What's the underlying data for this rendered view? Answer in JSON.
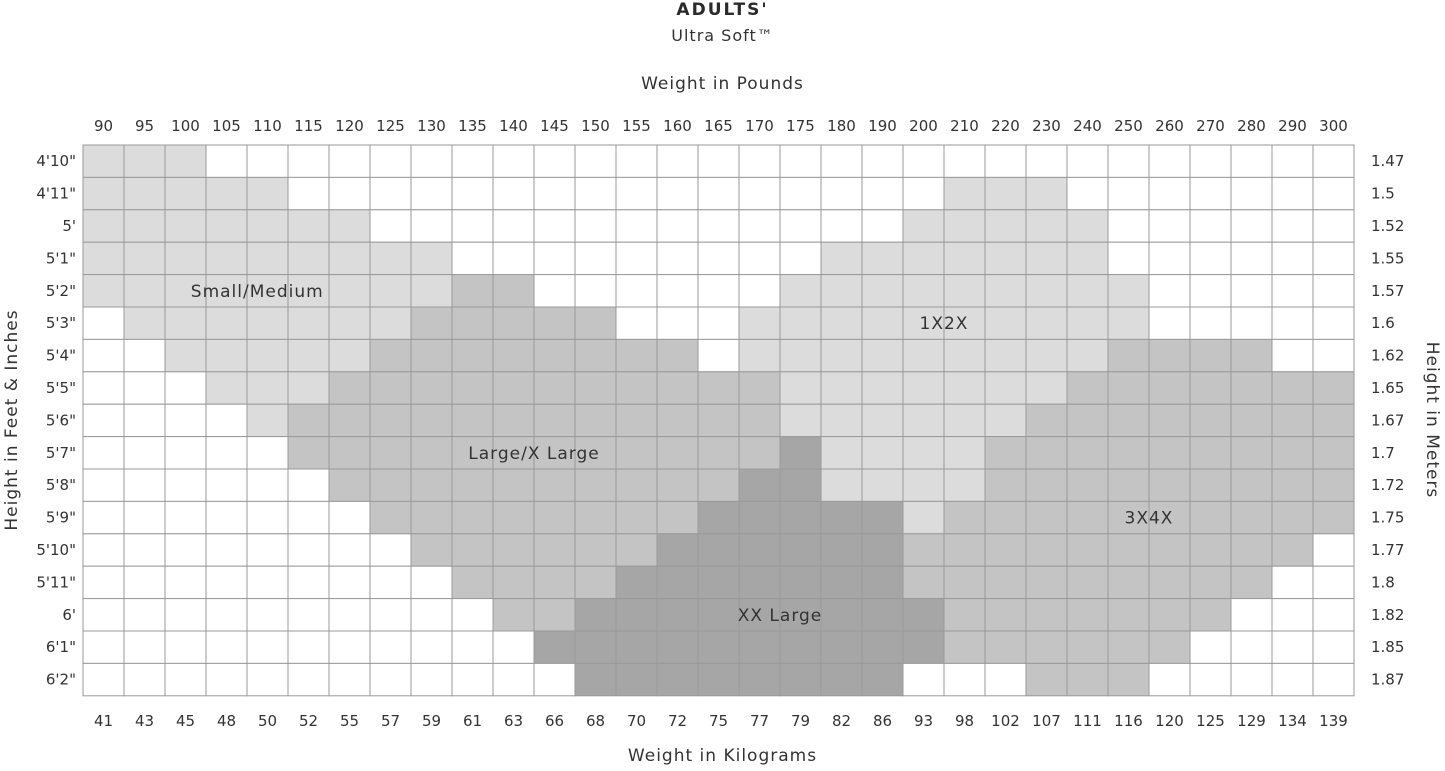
{
  "title": "ADULTS'",
  "subtitle": "Ultra Soft™",
  "colors": {
    "white": "#ffffff",
    "small_medium": "#dcdcdc",
    "one_two_x": "#dcdcdc",
    "large_xlarge": "#c4c4c4",
    "three_four_x": "#c4c4c4",
    "xx_large": "#a6a6a6",
    "grid": "#9a9a9a"
  },
  "chart_data": {
    "type": "heatmap",
    "x_top_label": "Weight in Pounds",
    "x_bottom_label": "Weight in Kilograms",
    "y_left_label": "Height in Feet & Inches",
    "y_right_label": "Height in Meters",
    "pounds": [
      "90",
      "95",
      "100",
      "105",
      "110",
      "115",
      "120",
      "125",
      "130",
      "135",
      "140",
      "145",
      "150",
      "155",
      "160",
      "165",
      "170",
      "175",
      "180",
      "190",
      "200",
      "210",
      "220",
      "230",
      "240",
      "250",
      "260",
      "270",
      "280",
      "290",
      "300"
    ],
    "kilograms": [
      "41",
      "43",
      "45",
      "48",
      "50",
      "52",
      "55",
      "57",
      "59",
      "61",
      "63",
      "66",
      "68",
      "70",
      "72",
      "75",
      "77",
      "79",
      "82",
      "86",
      "93",
      "98",
      "102",
      "107",
      "111",
      "116",
      "120",
      "125",
      "129",
      "134",
      "139"
    ],
    "heights_ft_in": [
      "4'10\"",
      "4'11\"",
      "5'",
      "5'1\"",
      "5'2\"",
      "5'3\"",
      "5'4\"",
      "5'5\"",
      "5'6\"",
      "5'7\"",
      "5'8\"",
      "5'9\"",
      "5'10\"",
      "5'11\"",
      "6'",
      "6'1\"",
      "6'2\""
    ],
    "heights_m": [
      "1.47",
      "1.5",
      "1.52",
      "1.55",
      "1.57",
      "1.6",
      "1.62",
      "1.65",
      "1.67",
      "1.7",
      "1.72",
      "1.75",
      "1.77",
      "1.8",
      "1.82",
      "1.85",
      "1.87"
    ],
    "size_legend": {
      "0": "none",
      "1": "Small/Medium",
      "2": "Large/X Large",
      "3": "XX Large",
      "4": "1X2X",
      "5": "3X4X"
    },
    "grid": [
      [
        1,
        1,
        1,
        0,
        0,
        0,
        0,
        0,
        0,
        0,
        0,
        0,
        0,
        0,
        0,
        0,
        0,
        0,
        0,
        0,
        0,
        0,
        0,
        0,
        0,
        0,
        0,
        0,
        0,
        0,
        0
      ],
      [
        1,
        1,
        1,
        1,
        1,
        0,
        0,
        0,
        0,
        0,
        0,
        0,
        0,
        0,
        0,
        0,
        0,
        0,
        0,
        0,
        0,
        4,
        4,
        4,
        0,
        0,
        0,
        0,
        0,
        0,
        0
      ],
      [
        1,
        1,
        1,
        1,
        1,
        1,
        1,
        0,
        0,
        0,
        0,
        0,
        0,
        0,
        0,
        0,
        0,
        0,
        0,
        0,
        4,
        4,
        4,
        4,
        4,
        0,
        0,
        0,
        0,
        0,
        0
      ],
      [
        1,
        1,
        1,
        1,
        1,
        1,
        1,
        1,
        1,
        0,
        0,
        0,
        0,
        0,
        0,
        0,
        0,
        0,
        4,
        4,
        4,
        4,
        4,
        4,
        4,
        0,
        0,
        0,
        0,
        0,
        0
      ],
      [
        1,
        1,
        1,
        1,
        1,
        1,
        1,
        1,
        1,
        2,
        2,
        0,
        0,
        0,
        0,
        0,
        0,
        4,
        4,
        4,
        4,
        4,
        4,
        4,
        4,
        4,
        0,
        0,
        0,
        0,
        0
      ],
      [
        0,
        1,
        1,
        1,
        1,
        1,
        1,
        1,
        2,
        2,
        2,
        2,
        2,
        0,
        0,
        0,
        4,
        4,
        4,
        4,
        4,
        4,
        4,
        4,
        4,
        4,
        0,
        0,
        0,
        0,
        0
      ],
      [
        0,
        0,
        1,
        1,
        1,
        1,
        1,
        2,
        2,
        2,
        2,
        2,
        2,
        2,
        2,
        0,
        4,
        4,
        4,
        4,
        4,
        4,
        4,
        4,
        4,
        5,
        5,
        5,
        5,
        0,
        0
      ],
      [
        0,
        0,
        0,
        1,
        1,
        1,
        2,
        2,
        2,
        2,
        2,
        2,
        2,
        2,
        2,
        2,
        2,
        4,
        4,
        4,
        4,
        4,
        4,
        4,
        5,
        5,
        5,
        5,
        5,
        5,
        5
      ],
      [
        0,
        0,
        0,
        0,
        1,
        2,
        2,
        2,
        2,
        2,
        2,
        2,
        2,
        2,
        2,
        2,
        2,
        4,
        4,
        4,
        4,
        4,
        4,
        5,
        5,
        5,
        5,
        5,
        5,
        5,
        5
      ],
      [
        0,
        0,
        0,
        0,
        0,
        2,
        2,
        2,
        2,
        2,
        2,
        2,
        2,
        2,
        2,
        2,
        2,
        3,
        4,
        4,
        4,
        4,
        5,
        5,
        5,
        5,
        5,
        5,
        5,
        5,
        5
      ],
      [
        0,
        0,
        0,
        0,
        0,
        0,
        2,
        2,
        2,
        2,
        2,
        2,
        2,
        2,
        2,
        2,
        3,
        3,
        4,
        4,
        4,
        4,
        5,
        5,
        5,
        5,
        5,
        5,
        5,
        5,
        5
      ],
      [
        0,
        0,
        0,
        0,
        0,
        0,
        0,
        2,
        2,
        2,
        2,
        2,
        2,
        2,
        2,
        3,
        3,
        3,
        3,
        3,
        4,
        5,
        5,
        5,
        5,
        5,
        5,
        5,
        5,
        5,
        5
      ],
      [
        0,
        0,
        0,
        0,
        0,
        0,
        0,
        0,
        2,
        2,
        2,
        2,
        2,
        2,
        3,
        3,
        3,
        3,
        3,
        3,
        5,
        5,
        5,
        5,
        5,
        5,
        5,
        5,
        5,
        5,
        0
      ],
      [
        0,
        0,
        0,
        0,
        0,
        0,
        0,
        0,
        0,
        2,
        2,
        2,
        2,
        3,
        3,
        3,
        3,
        3,
        3,
        3,
        5,
        5,
        5,
        5,
        5,
        5,
        5,
        5,
        5,
        0,
        0
      ],
      [
        0,
        0,
        0,
        0,
        0,
        0,
        0,
        0,
        0,
        0,
        2,
        2,
        3,
        3,
        3,
        3,
        3,
        3,
        3,
        3,
        3,
        5,
        5,
        5,
        5,
        5,
        5,
        5,
        0,
        0,
        0
      ],
      [
        0,
        0,
        0,
        0,
        0,
        0,
        0,
        0,
        0,
        0,
        0,
        3,
        3,
        3,
        3,
        3,
        3,
        3,
        3,
        3,
        3,
        5,
        5,
        5,
        5,
        5,
        5,
        0,
        0,
        0,
        0
      ],
      [
        0,
        0,
        0,
        0,
        0,
        0,
        0,
        0,
        0,
        0,
        0,
        0,
        3,
        3,
        3,
        3,
        3,
        3,
        3,
        3,
        0,
        0,
        0,
        5,
        5,
        5,
        0,
        0,
        0,
        0,
        0
      ]
    ],
    "region_labels": [
      {
        "text": "Small/Medium",
        "row": 4,
        "col": 3.75
      },
      {
        "text": "Large/X Large",
        "row": 9,
        "col": 10.5
      },
      {
        "text": "1X2X",
        "row": 5,
        "col": 20.5
      },
      {
        "text": "3X4X",
        "row": 11,
        "col": 25.5
      },
      {
        "text": "XX Large",
        "row": 14,
        "col": 16.5
      }
    ]
  }
}
